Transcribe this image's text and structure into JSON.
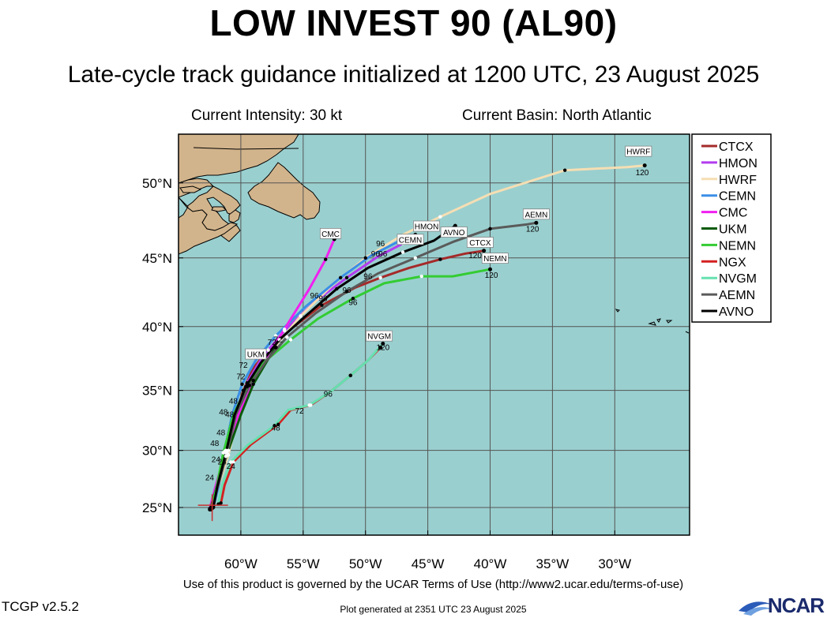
{
  "header": {
    "title": "LOW INVEST 90 (AL90)",
    "subtitle": "Late-cycle track guidance initialized at 1200 UTC, 23 August 2025",
    "current_intensity": "Current Intensity: 30 kt",
    "current_basin": "Current Basin: North Atlantic"
  },
  "footer": {
    "terms": "Use of this product is governed by the UCAR Terms of Use (http://www2.ucar.edu/terms-of-use)",
    "version": "TCGP v2.5.2",
    "generated": "Plot generated at 2351 UTC   23 August 2025",
    "logo_text": "NCAR"
  },
  "colors": {
    "ocean": "#9acfcf",
    "land": "#d2b48c",
    "grid": "#555555"
  },
  "chart_data": {
    "type": "map",
    "lon_range": [
      -65,
      -24
    ],
    "lat_range": [
      22.5,
      53
    ],
    "x_ticks": [
      {
        "value": -60,
        "label": "60°W"
      },
      {
        "value": -55,
        "label": "55°W"
      },
      {
        "value": -50,
        "label": "50°W"
      },
      {
        "value": -45,
        "label": "45°W"
      },
      {
        "value": -40,
        "label": "40°W"
      },
      {
        "value": -35,
        "label": "35°W"
      },
      {
        "value": -30,
        "label": "30°W"
      }
    ],
    "y_ticks": [
      {
        "value": 25,
        "label": "25°N"
      },
      {
        "value": 30,
        "label": "30°N"
      },
      {
        "value": 35,
        "label": "35°N"
      },
      {
        "value": 40,
        "label": "40°N"
      },
      {
        "value": 45,
        "label": "45°N"
      },
      {
        "value": 50,
        "label": "50°N"
      }
    ],
    "grid": true,
    "legend_position": "right",
    "initial_position": {
      "lon": -62.3,
      "lat": 25.2
    },
    "series": [
      {
        "name": "CTCX",
        "color": "#a52a2a",
        "end_label": "120",
        "points": [
          [
            -62.5,
            24.8
          ],
          [
            -62.0,
            26.3
          ],
          [
            -61.2,
            29.5
          ],
          [
            -60.5,
            32.5
          ],
          [
            -59.8,
            35.0
          ],
          [
            -59.0,
            36.8
          ],
          [
            -57.8,
            38.2
          ],
          [
            -56.0,
            39.8
          ],
          [
            -53.5,
            41.6
          ],
          [
            -50.8,
            42.9
          ],
          [
            -48.8,
            43.6
          ],
          [
            -46.5,
            44.3
          ],
          [
            -44.0,
            44.9
          ],
          [
            -42.0,
            45.3
          ],
          [
            -40.5,
            45.5
          ]
        ]
      },
      {
        "name": "HMON",
        "color": "#b33cf0",
        "end_label": "",
        "points": [
          [
            -62.3,
            25.0
          ],
          [
            -61.9,
            26.5
          ],
          [
            -61.1,
            29.8
          ],
          [
            -60.4,
            33.0
          ],
          [
            -59.5,
            35.6
          ],
          [
            -58.3,
            37.6
          ],
          [
            -56.5,
            39.7
          ],
          [
            -54.0,
            41.9
          ],
          [
            -51.5,
            43.6
          ],
          [
            -49.0,
            45.1
          ],
          [
            -47.0,
            46.0
          ],
          [
            -45.7,
            46.5
          ]
        ]
      },
      {
        "name": "HWRF",
        "color": "#f5deb3",
        "end_label": "120",
        "points": [
          [
            -62.4,
            25.0
          ],
          [
            -61.9,
            26.6
          ],
          [
            -61.0,
            29.6
          ],
          [
            -60.2,
            33.0
          ],
          [
            -59.0,
            35.8
          ],
          [
            -57.4,
            38.3
          ],
          [
            -55.2,
            40.8
          ],
          [
            -52.5,
            43.2
          ],
          [
            -50.0,
            45.0
          ],
          [
            -47.0,
            46.6
          ],
          [
            -44.0,
            47.8
          ],
          [
            -40.0,
            49.3
          ],
          [
            -34.0,
            50.8
          ],
          [
            -29.0,
            51.0
          ],
          [
            -27.6,
            51.1
          ]
        ]
      },
      {
        "name": "CEMN",
        "color": "#3a8ee6",
        "end_label": "",
        "points": [
          [
            -62.2,
            25.1
          ],
          [
            -61.8,
            26.8
          ],
          [
            -61.3,
            29.9
          ],
          [
            -60.7,
            33.0
          ],
          [
            -59.9,
            35.5
          ],
          [
            -58.8,
            37.4
          ],
          [
            -57.2,
            39.3
          ],
          [
            -54.8,
            41.5
          ],
          [
            -52.0,
            43.6
          ],
          [
            -49.5,
            45.2
          ],
          [
            -47.2,
            46.2
          ],
          [
            -46.0,
            46.6
          ]
        ]
      },
      {
        "name": "CMC",
        "color": "#f020f0",
        "end_label": "",
        "points": [
          [
            -62.5,
            24.9
          ],
          [
            -62.0,
            27.0
          ],
          [
            -61.2,
            30.0
          ],
          [
            -60.2,
            33.0
          ],
          [
            -59.0,
            35.8
          ],
          [
            -57.7,
            38.0
          ],
          [
            -56.5,
            39.8
          ],
          [
            -54.5,
            42.8
          ],
          [
            -53.2,
            44.9
          ],
          [
            -52.5,
            46.3
          ]
        ]
      },
      {
        "name": "UKM",
        "color": "#0a5a0a",
        "end_label": "",
        "points": [
          [
            -62.4,
            25.0
          ],
          [
            -61.9,
            27.0
          ],
          [
            -61.0,
            30.0
          ],
          [
            -60.0,
            33.0
          ],
          [
            -59.0,
            35.5
          ],
          [
            -57.8,
            37.5
          ],
          [
            -57.2,
            38.4
          ]
        ]
      },
      {
        "name": "NEMN",
        "color": "#33cc33",
        "end_label": "120",
        "points": [
          [
            -62.4,
            24.8
          ],
          [
            -62.0,
            26.5
          ],
          [
            -61.4,
            29.8
          ],
          [
            -60.6,
            33.0
          ],
          [
            -59.5,
            35.3
          ],
          [
            -58.2,
            37.2
          ],
          [
            -56.0,
            39.0
          ],
          [
            -53.8,
            40.6
          ],
          [
            -51.0,
            42.1
          ],
          [
            -48.5,
            43.2
          ],
          [
            -45.5,
            43.7
          ],
          [
            -43.0,
            43.7
          ],
          [
            -40.0,
            44.2
          ]
        ]
      },
      {
        "name": "NGX",
        "color": "#d42020",
        "end_label": "",
        "points": [
          [
            -61.6,
            25.4
          ],
          [
            -61.3,
            27.0
          ],
          [
            -60.6,
            29.0
          ],
          [
            -59.2,
            30.5
          ],
          [
            -57.0,
            32.2
          ],
          [
            -56.0,
            33.4
          ],
          [
            -54.4,
            33.8
          ],
          [
            -52.8,
            34.9
          ],
          [
            -51.2,
            36.2
          ],
          [
            -49.8,
            37.4
          ],
          [
            -48.8,
            38.4
          ]
        ]
      },
      {
        "name": "NVGM",
        "color": "#66e0b0",
        "end_label": "120",
        "points": [
          [
            -61.8,
            25.3
          ],
          [
            -61.5,
            27.0
          ],
          [
            -60.8,
            29.0
          ],
          [
            -59.4,
            30.5
          ],
          [
            -57.3,
            32.1
          ],
          [
            -56.2,
            33.4
          ],
          [
            -54.5,
            33.8
          ],
          [
            -52.8,
            34.9
          ],
          [
            -51.2,
            36.2
          ],
          [
            -49.8,
            37.4
          ],
          [
            -48.6,
            38.7
          ]
        ]
      },
      {
        "name": "AEMN",
        "color": "#5a5a5a",
        "end_label": "120",
        "points": [
          [
            -62.3,
            24.9
          ],
          [
            -61.9,
            26.6
          ],
          [
            -61.1,
            29.8
          ],
          [
            -60.4,
            33.0
          ],
          [
            -59.3,
            35.4
          ],
          [
            -58.0,
            37.3
          ],
          [
            -56.3,
            39.2
          ],
          [
            -54.0,
            41.0
          ],
          [
            -51.5,
            42.6
          ],
          [
            -49.0,
            43.9
          ],
          [
            -46.0,
            45.0
          ],
          [
            -43.0,
            46.1
          ],
          [
            -40.0,
            47.0
          ],
          [
            -37.0,
            47.3
          ],
          [
            -36.3,
            47.4
          ]
        ]
      },
      {
        "name": "AVNO",
        "color": "#000000",
        "end_label": "",
        "points": [
          [
            -62.2,
            25.0
          ],
          [
            -61.9,
            26.8
          ],
          [
            -61.2,
            29.8
          ],
          [
            -60.5,
            33.0
          ],
          [
            -59.6,
            35.3
          ],
          [
            -58.4,
            37.2
          ],
          [
            -56.9,
            39.0
          ],
          [
            -54.8,
            40.8
          ],
          [
            -52.3,
            42.8
          ],
          [
            -49.8,
            44.3
          ],
          [
            -47.0,
            45.4
          ],
          [
            -44.5,
            46.2
          ],
          [
            -42.8,
            47.2
          ]
        ]
      }
    ],
    "map_labels": [
      {
        "text": "HWRF",
        "lon": -28.1,
        "lat": 51.9
      },
      {
        "text": "HMON",
        "lon": -45.1,
        "lat": 47.1
      },
      {
        "text": "AVNO",
        "lon": -42.9,
        "lat": 46.7
      },
      {
        "text": "CEMN",
        "lon": -46.4,
        "lat": 46.2
      },
      {
        "text": "CMC",
        "lon": -52.8,
        "lat": 46.6
      },
      {
        "text": "AEMN",
        "lon": -36.3,
        "lat": 47.9
      },
      {
        "text": "CTCX",
        "lon": -40.8,
        "lat": 46.0
      },
      {
        "text": "NEMN",
        "lon": -39.6,
        "lat": 44.9
      },
      {
        "text": "NVGM",
        "lon": -48.9,
        "lat": 39.2
      },
      {
        "text": "UKM",
        "lon": -58.8,
        "lat": 37.8
      }
    ],
    "point_labels": [
      {
        "text": "120",
        "lon": -27.8,
        "lat": 50.5
      },
      {
        "text": "120",
        "lon": -36.6,
        "lat": 46.8
      },
      {
        "text": "120",
        "lon": -41.2,
        "lat": 45.0
      },
      {
        "text": "120",
        "lon": -39.9,
        "lat": 43.6
      },
      {
        "text": "120",
        "lon": -48.6,
        "lat": 38.2
      },
      {
        "text": "96",
        "lon": -48.8,
        "lat": 45.8
      },
      {
        "text": "96",
        "lon": -49.2,
        "lat": 45.1
      },
      {
        "text": "96",
        "lon": -48.6,
        "lat": 45.1
      },
      {
        "text": "96",
        "lon": -49.8,
        "lat": 43.5
      },
      {
        "text": "96",
        "lon": -54.1,
        "lat": 42.1
      },
      {
        "text": "96",
        "lon": -53.4,
        "lat": 41.9
      },
      {
        "text": "96",
        "lon": -51.5,
        "lat": 42.5
      },
      {
        "text": "96",
        "lon": -51.0,
        "lat": 41.6
      },
      {
        "text": "96",
        "lon": -53.0,
        "lat": 34.5
      },
      {
        "text": "72",
        "lon": -57.5,
        "lat": 38.6
      },
      {
        "text": "72",
        "lon": -57.0,
        "lat": 38.8
      },
      {
        "text": "72",
        "lon": -59.8,
        "lat": 36.8
      },
      {
        "text": "72",
        "lon": -60.0,
        "lat": 35.9
      },
      {
        "text": "72",
        "lon": -55.3,
        "lat": 33.1
      },
      {
        "text": "48",
        "lon": -60.6,
        "lat": 33.9
      },
      {
        "text": "48",
        "lon": -61.4,
        "lat": 33.0
      },
      {
        "text": "48",
        "lon": -60.9,
        "lat": 32.8
      },
      {
        "text": "48",
        "lon": -61.6,
        "lat": 31.3
      },
      {
        "text": "48",
        "lon": -62.1,
        "lat": 30.4
      },
      {
        "text": "48",
        "lon": -57.2,
        "lat": 31.7
      },
      {
        "text": "24",
        "lon": -62.0,
        "lat": 29.0
      },
      {
        "text": "24",
        "lon": -61.5,
        "lat": 28.8
      },
      {
        "text": "24",
        "lon": -60.8,
        "lat": 28.4
      },
      {
        "text": "24",
        "lon": -62.5,
        "lat": 27.4
      }
    ]
  }
}
